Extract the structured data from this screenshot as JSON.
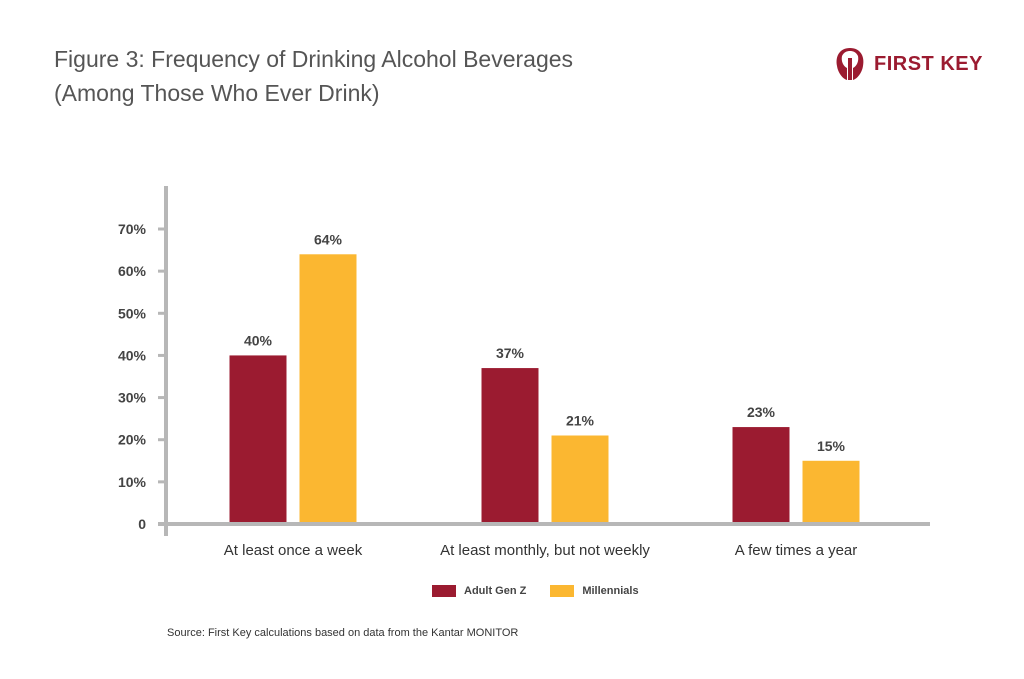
{
  "header": {
    "title_line1": "Figure 3: Frequency of Drinking Alcohol Beverages",
    "title_line2": "(Among Those Who Ever Drink)"
  },
  "logo": {
    "text": "FIRST KEY",
    "icon": "first-key-logo-icon",
    "color": "#9b1b30"
  },
  "chart_data": {
    "type": "bar",
    "categories": [
      "At least once a week",
      "At least monthly, but not weekly",
      "A few times a year"
    ],
    "series": [
      {
        "name": "Adult Gen Z",
        "values": [
          40,
          37,
          23
        ],
        "labels": [
          "40%",
          "37%",
          "23%"
        ],
        "color": "#9b1b30"
      },
      {
        "name": "Millennials",
        "values": [
          64,
          21,
          15
        ],
        "labels": [
          "64%",
          "21%",
          "15%"
        ],
        "color": "#fbb731"
      }
    ],
    "ylim": [
      0,
      70
    ],
    "yticks": [
      0,
      10,
      20,
      30,
      40,
      50,
      60,
      70
    ],
    "ytick_labels": [
      "0",
      "10%",
      "20%",
      "30%",
      "40%",
      "50%",
      "60%",
      "70%"
    ],
    "grid": false,
    "legend_position": "bottom-center",
    "axis_color": "#b7b7b7"
  },
  "source": "Source: First Key calculations based on data from the Kantar MONITOR"
}
